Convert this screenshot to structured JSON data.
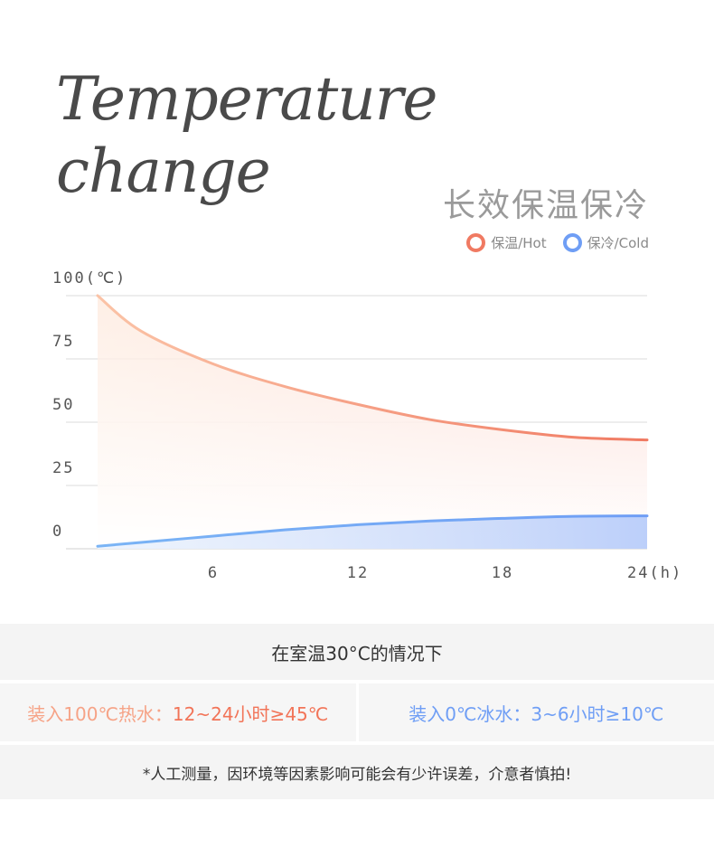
{
  "header": {
    "title_line1": "Temperature",
    "title_line2": "change",
    "subtitle": "长效保温保冷"
  },
  "legend": [
    {
      "label": "保温/Hot",
      "color": "#f07a62"
    },
    {
      "label": "保冷/Cold",
      "color": "#6f9ef5"
    }
  ],
  "chart_data": {
    "type": "area",
    "title": "Temperature change",
    "subtitle": "长效保温保冷",
    "y_label": "100(℃)",
    "x_label": "24(h)",
    "y_ticks": [
      "0",
      "25",
      "50",
      "75",
      "100(℃)"
    ],
    "y_tick_values": [
      0,
      25,
      50,
      75,
      100
    ],
    "x_ticks": [
      "6",
      "12",
      "18",
      "24(h)"
    ],
    "x_tick_values": [
      6,
      12,
      18,
      24
    ],
    "xlim": [
      1.2,
      24
    ],
    "ylim": [
      0,
      100
    ],
    "grid": true,
    "legend_position": "top-right",
    "series": [
      {
        "name": "保温/Hot",
        "x": [
          1.2,
          3,
          6,
          9,
          12,
          15,
          18,
          21,
          24
        ],
        "y": [
          100,
          86,
          73,
          64,
          57,
          51,
          47,
          44,
          43
        ],
        "colors": [
          "#fbc3a6",
          "#f07a62"
        ]
      },
      {
        "name": "保冷/Cold",
        "x": [
          1.2,
          3,
          6,
          9,
          12,
          15,
          18,
          21,
          24
        ],
        "y": [
          1,
          2.5,
          5,
          7.5,
          9.5,
          11,
          12,
          12.8,
          13
        ],
        "colors": [
          "#7ab4f5",
          "#6f9ef5"
        ]
      }
    ]
  },
  "info": {
    "condition": "在室温30°C的情况下",
    "hot_label": "装入100℃热水：",
    "hot_value": "12~24小时≥45℃",
    "hot_label_color": "#f6a387",
    "hot_value_color": "#f27458",
    "cold_label": "装入0℃冰水：",
    "cold_value": "3~6小时≥10℃",
    "cold_color": "#6f9ef5",
    "note": "*人工测量，因环境等因素影响可能会有少许误差，介意者慎拍!"
  }
}
